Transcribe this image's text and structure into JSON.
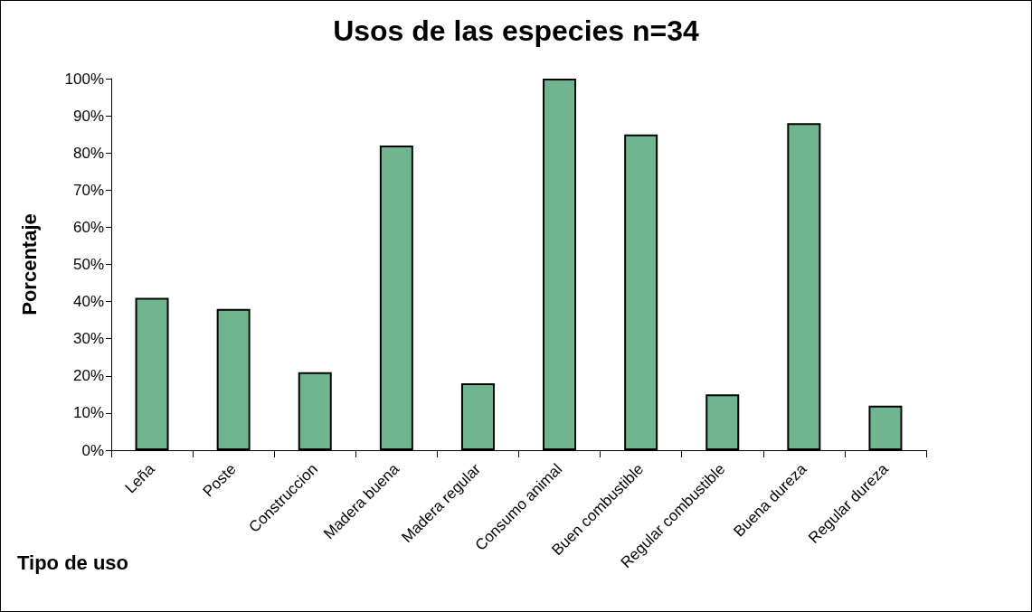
{
  "chart_data": {
    "type": "bar",
    "title": "Usos de las especies n=34",
    "xlabel": "Tipo de uso",
    "ylabel": "Porcentaje",
    "categories": [
      "Leña",
      "Poste",
      "Construccion",
      "Madera buena",
      "Madera regular",
      "Consumo animal",
      "Buen combustible",
      "Regular combustible",
      "Buena dureza",
      "Regular dureza"
    ],
    "values": [
      41,
      38,
      21,
      82,
      18,
      100,
      85,
      15,
      88,
      12
    ],
    "color": "#6fb58f",
    "ylim": [
      0,
      100
    ],
    "yticks": [
      {
        "value": 0,
        "label": "0%"
      },
      {
        "value": 10,
        "label": "10%"
      },
      {
        "value": 20,
        "label": "20%"
      },
      {
        "value": 30,
        "label": "30%"
      },
      {
        "value": 40,
        "label": "40%"
      },
      {
        "value": 50,
        "label": "50%"
      },
      {
        "value": 60,
        "label": "60%"
      },
      {
        "value": 70,
        "label": "70%"
      },
      {
        "value": 80,
        "label": "80%"
      },
      {
        "value": 90,
        "label": "90%"
      },
      {
        "value": 100,
        "label": "100%"
      }
    ],
    "grid": false
  }
}
